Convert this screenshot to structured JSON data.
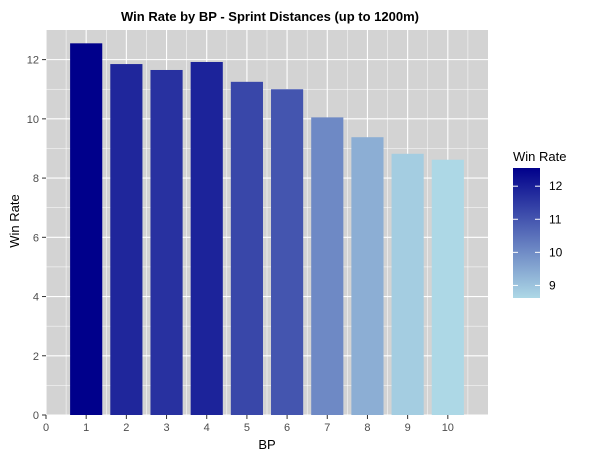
{
  "chart_data": {
    "type": "bar",
    "title": "Win Rate by BP - Sprint Distances (up to 1200m)",
    "xlabel": "BP",
    "ylabel": "Win Rate",
    "categories": [
      1,
      2,
      3,
      4,
      5,
      6,
      7,
      8,
      9,
      10
    ],
    "values": [
      12.55,
      11.85,
      11.65,
      11.92,
      11.25,
      11.0,
      10.05,
      9.38,
      8.82,
      8.62
    ],
    "xlim": [
      0,
      11
    ],
    "ylim": [
      0,
      13
    ],
    "x_ticks": [
      "0",
      "1",
      "2",
      "3",
      "4",
      "5",
      "6",
      "7",
      "8",
      "9",
      "10"
    ],
    "y_ticks": [
      "0",
      "2",
      "4",
      "6",
      "8",
      "10",
      "12"
    ],
    "panel_background": "#d3d3d3",
    "grid": true,
    "grid_color": "#ffffff",
    "color_scale": {
      "low_color": "#add8e6",
      "high_color": "#00008b",
      "min": 8.62,
      "max": 12.55
    },
    "legend": {
      "title": "Win Rate",
      "placement": "right",
      "labels": [
        "12",
        "11",
        "10",
        "9"
      ],
      "label_values": [
        12,
        11,
        10,
        9
      ]
    }
  }
}
